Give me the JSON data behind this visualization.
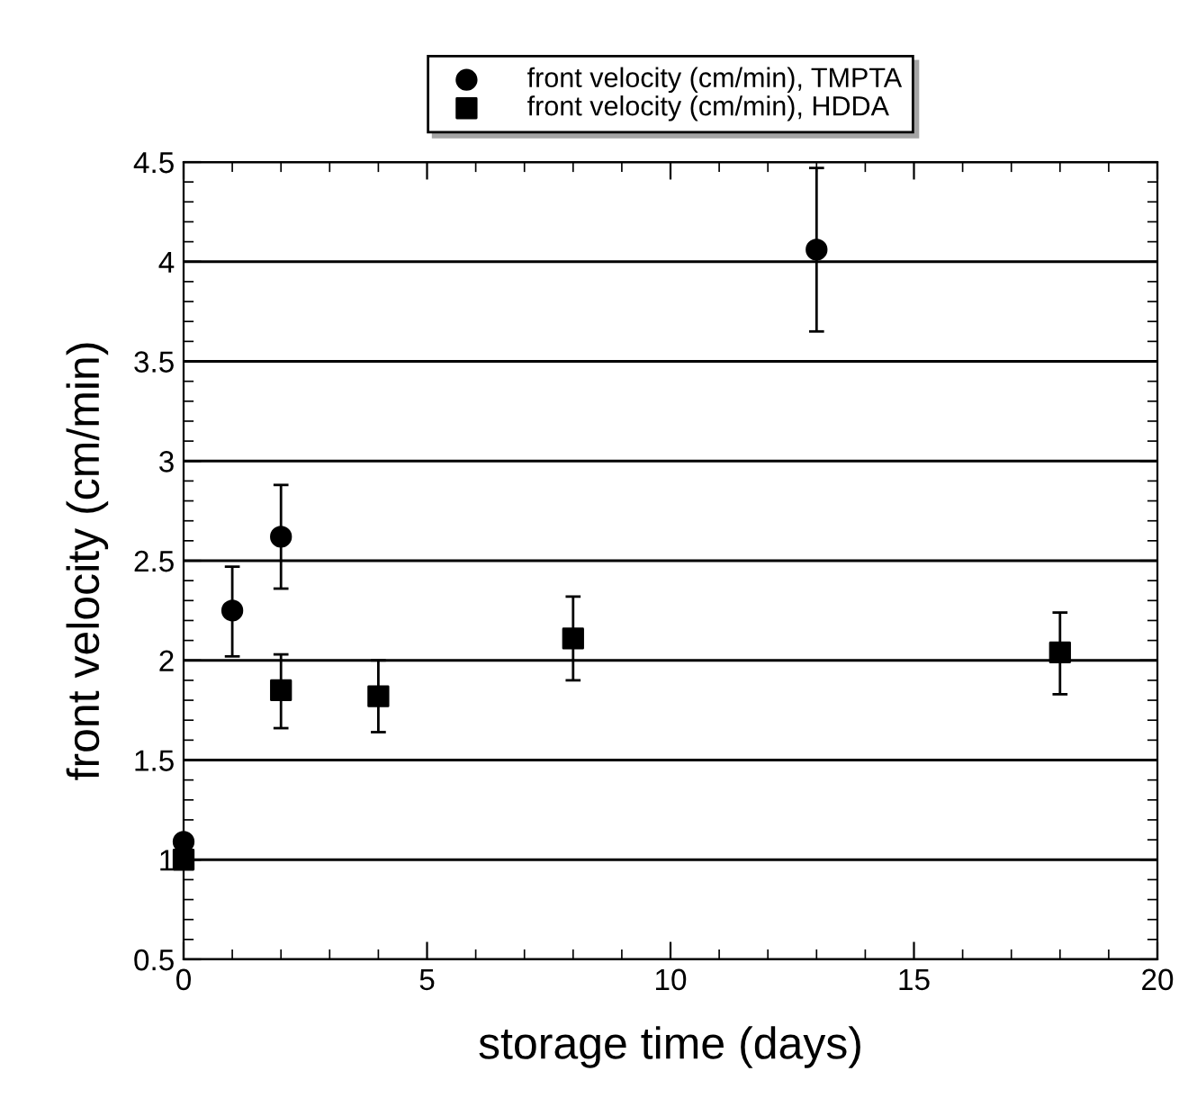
{
  "chart_data": {
    "type": "scatter",
    "xlabel": "storage time (days)",
    "ylabel": "front velocity (cm/min)",
    "series": [
      {
        "name": "front velocity (cm/min), TMPTA",
        "color": "#000000",
        "marker": "circle",
        "x": [
          0,
          1,
          2,
          13
        ],
        "values": [
          1.09,
          2.25,
          2.62,
          4.06
        ],
        "errors": [
          null,
          [
            2.02,
            2.47
          ],
          [
            2.36,
            2.88
          ],
          [
            3.65,
            4.47
          ]
        ]
      },
      {
        "name": "front velocity (cm/min), HDDA",
        "color": "#000000",
        "marker": "square",
        "x": [
          0,
          2,
          4,
          8,
          18
        ],
        "values": [
          1.0,
          1.85,
          1.82,
          2.11,
          2.04
        ],
        "errors": [
          null,
          [
            1.66,
            2.03
          ],
          [
            1.64,
            2.0
          ],
          [
            1.9,
            2.32
          ],
          [
            1.83,
            2.24
          ]
        ]
      }
    ],
    "xlim": [
      0,
      20
    ],
    "xticks": [
      0,
      5,
      10,
      15,
      20
    ],
    "ylim": [
      0.5,
      4.5
    ],
    "yticks": [
      0.5,
      1,
      1.5,
      2,
      2.5,
      3,
      3.5,
      4,
      4.5
    ],
    "grid": "y",
    "legend": "top"
  }
}
